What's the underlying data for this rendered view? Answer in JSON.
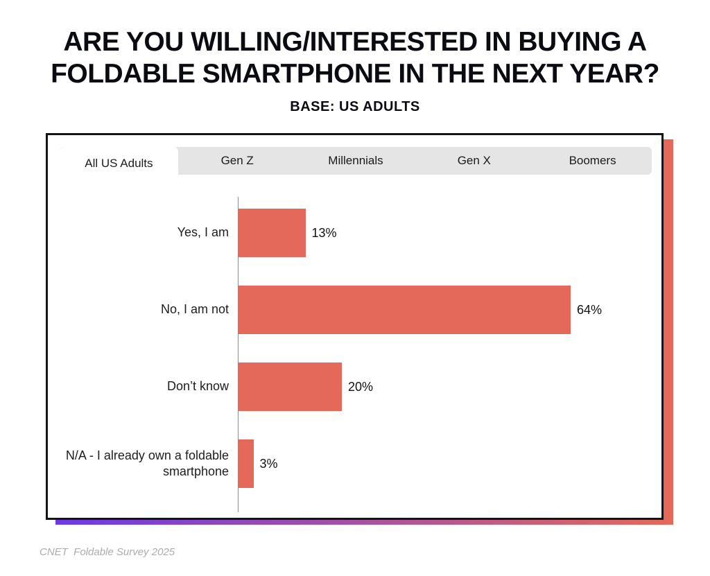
{
  "header": {
    "title_line1": "ARE YOU WILLING/INTERESTED IN BUYING A",
    "title_line2": "FOLDABLE SMARTPHONE IN THE NEXT YEAR?",
    "subtitle": "BASE: US ADULTS"
  },
  "tabs": {
    "selected": "All US Adults",
    "items": [
      {
        "label": "All US Adults"
      },
      {
        "label": "Gen Z"
      },
      {
        "label": "Millennials"
      },
      {
        "label": "Gen X"
      },
      {
        "label": "Boomers"
      }
    ]
  },
  "chart_data": {
    "type": "bar",
    "orientation": "horizontal",
    "categories": [
      "Yes, I am",
      "No, I am not",
      "Don’t know",
      "N/A - I already own a foldable smartphone"
    ],
    "values": [
      13,
      64,
      20,
      3
    ],
    "value_labels": [
      "13%",
      "64%",
      "20%",
      "3%"
    ],
    "xlim": [
      0,
      70
    ],
    "grid": false,
    "legend": false,
    "bar_color": "#E5695A"
  },
  "footer": {
    "credit": "CNET  Foldable Survey 2025"
  },
  "colors": {
    "bar": "#E5695A",
    "shadow_gradient_left": "#6C3AE6",
    "shadow_gradient_right": "#E5695A",
    "tabbar_bg": "#E5E5E5",
    "axis_line": "#8C8C8C",
    "card_border": "#141414",
    "footer_text": "#ACACAC"
  }
}
